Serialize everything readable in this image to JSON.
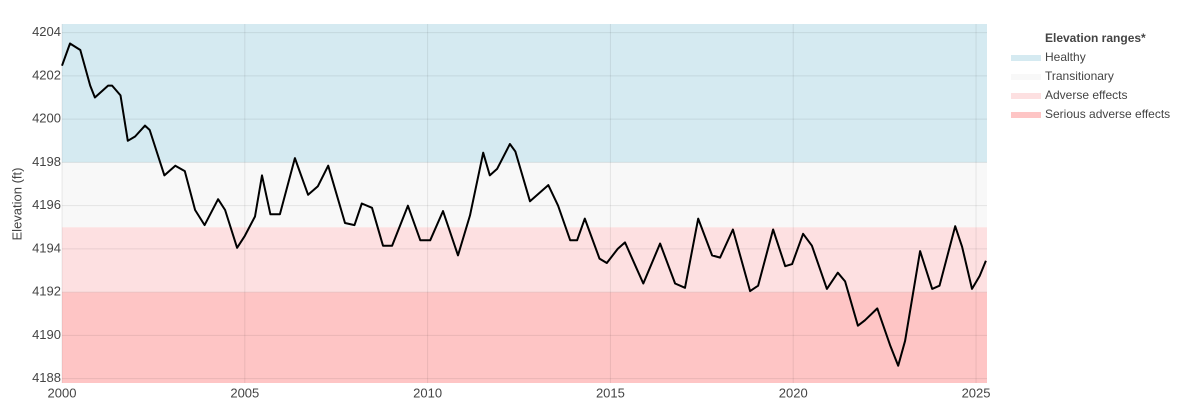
{
  "chart_data": {
    "type": "line",
    "y_label": "Elevation (ft)",
    "legend_title": "Elevation ranges*",
    "bands": [
      {
        "name": "Healthy",
        "color": "#d5eaf1",
        "range": [
          4198,
          4204.4
        ]
      },
      {
        "name": "Transitionary",
        "color": "#f8f8f8",
        "range": [
          4195,
          4198
        ]
      },
      {
        "name": "Adverse effects",
        "color": "#fde0e1",
        "range": [
          4192,
          4195
        ]
      },
      {
        "name": "Serious adverse effects",
        "color": "#fec5c5",
        "range": [
          4187.8,
          4192
        ]
      }
    ],
    "x": [
      2000.0,
      2000.22,
      2000.5,
      2000.77,
      2000.9,
      2001.26,
      2001.37,
      2001.6,
      2001.8,
      2002.0,
      2002.27,
      2002.4,
      2002.8,
      2003.1,
      2003.36,
      2003.64,
      2003.9,
      2004.27,
      2004.46,
      2004.79,
      2005.0,
      2005.28,
      2005.47,
      2005.7,
      2005.96,
      2006.37,
      2006.73,
      2007.0,
      2007.28,
      2007.74,
      2008.0,
      2008.2,
      2008.48,
      2008.78,
      2009.03,
      2009.46,
      2009.8,
      2010.07,
      2010.42,
      2010.83,
      2011.16,
      2011.52,
      2011.7,
      2011.9,
      2012.25,
      2012.4,
      2012.8,
      2013.3,
      2013.57,
      2013.9,
      2014.09,
      2014.3,
      2014.7,
      2014.9,
      2015.2,
      2015.4,
      2015.9,
      2016.36,
      2016.77,
      2017.04,
      2017.4,
      2017.78,
      2018.0,
      2018.35,
      2018.82,
      2019.04,
      2019.45,
      2019.78,
      2019.97,
      2020.27,
      2020.51,
      2020.92,
      2021.22,
      2021.42,
      2021.77,
      2021.96,
      2022.3,
      2022.65,
      2022.87,
      2023.06,
      2023.47,
      2023.8,
      2024.0,
      2024.43,
      2024.62,
      2024.89,
      2025.1,
      2025.27
    ],
    "series": [
      {
        "color": "#000000",
        "values": [
          4202.47,
          4203.5,
          4203.2,
          4201.55,
          4201.0,
          4201.55,
          4201.55,
          4201.1,
          4199.0,
          4199.2,
          4199.7,
          4199.5,
          4197.4,
          4197.85,
          4197.6,
          4195.8,
          4195.1,
          4196.3,
          4195.8,
          4194.05,
          4194.6,
          4195.5,
          4197.4,
          4195.6,
          4195.6,
          4198.2,
          4196.5,
          4196.9,
          4197.85,
          4195.2,
          4195.1,
          4196.1,
          4195.9,
          4194.15,
          4194.15,
          4196.0,
          4194.4,
          4194.4,
          4195.75,
          4193.7,
          4195.55,
          4198.45,
          4197.4,
          4197.7,
          4198.85,
          4198.5,
          4196.2,
          4196.95,
          4196.0,
          4194.4,
          4194.4,
          4195.4,
          4193.55,
          4193.35,
          4194.0,
          4194.3,
          4192.4,
          4194.25,
          4192.4,
          4192.2,
          4195.4,
          4193.7,
          4193.6,
          4194.9,
          4192.05,
          4192.3,
          4194.9,
          4193.2,
          4193.3,
          4194.7,
          4194.15,
          4192.15,
          4192.9,
          4192.5,
          4190.45,
          4190.7,
          4191.25,
          4189.55,
          4188.6,
          4189.75,
          4193.9,
          4192.15,
          4192.3,
          4195.05,
          4194.1,
          4192.15,
          4192.75,
          4193.45
        ]
      }
    ],
    "xlim": [
      2000,
      2025.3
    ],
    "xticks": [
      2000,
      2005,
      2010,
      2015,
      2020,
      2025
    ],
    "ylim": [
      4187.8,
      4204.4
    ],
    "yticks": [
      4188,
      4190,
      4192,
      4194,
      4196,
      4198,
      4200,
      4202,
      4204
    ],
    "grid": true
  }
}
